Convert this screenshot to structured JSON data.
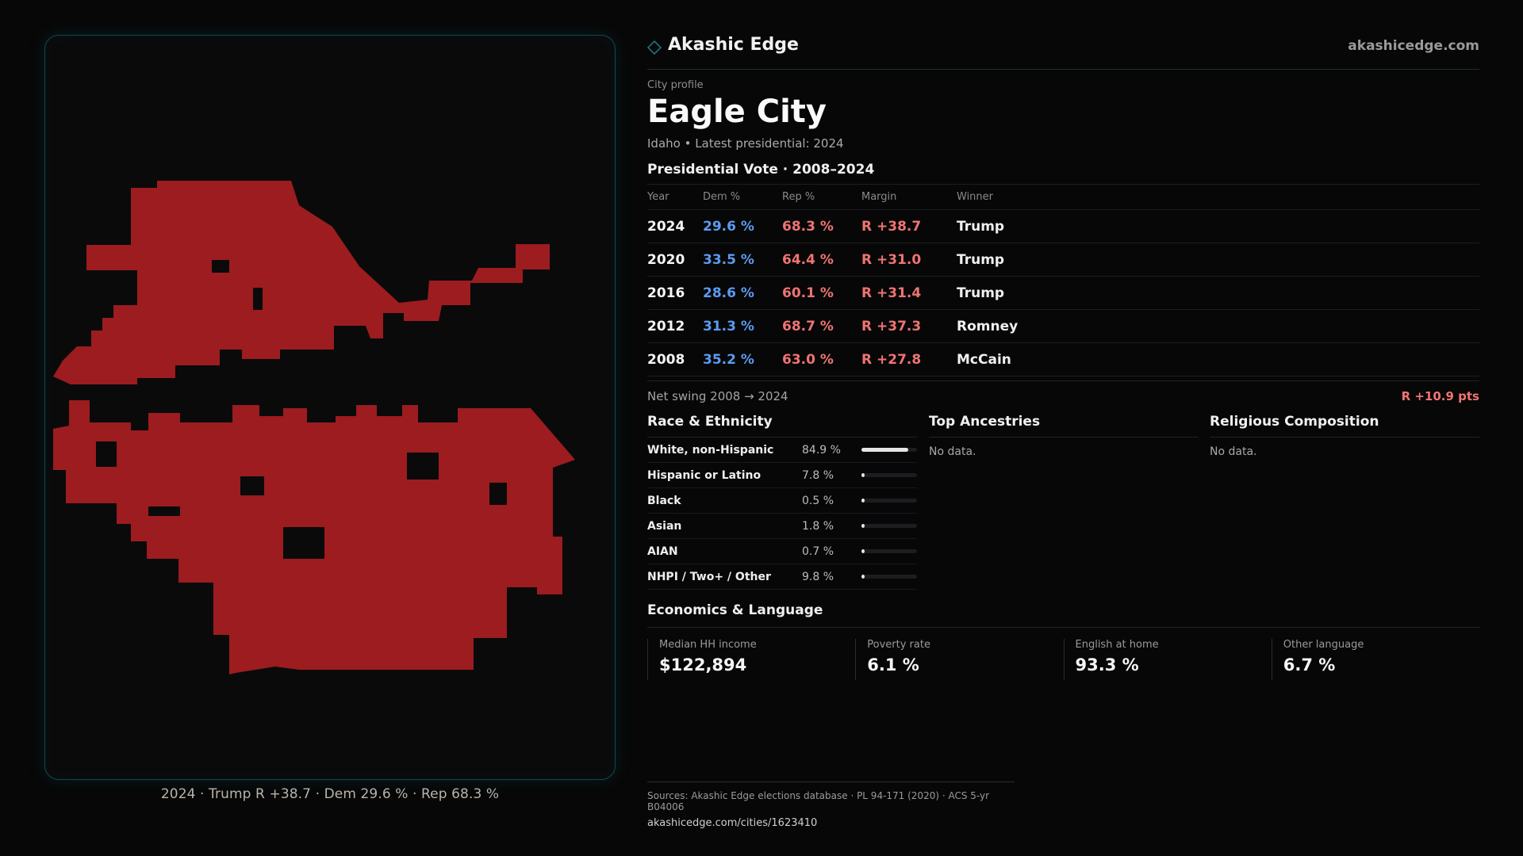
{
  "brand": {
    "name": "Akashic Edge",
    "site": "akashicedge.com",
    "accent": "#1f6f80"
  },
  "profile": {
    "eyebrow": "City profile",
    "city": "Eagle City",
    "subtitle": "Idaho • Latest presidential: 2024"
  },
  "map": {
    "fill": "#9c1c1f",
    "caption": "2024 · Trump R +38.7 · Dem 29.6 % · Rep 68.3 %"
  },
  "vote": {
    "title": "Presidential Vote · 2008–2024",
    "headers": {
      "year": "Year",
      "dem": "Dem %",
      "rep": "Rep %",
      "margin": "Margin",
      "winner": "Winner"
    },
    "rows": [
      {
        "year": "2024",
        "dem": "29.6 %",
        "rep": "68.3 %",
        "margin": "R +38.7",
        "winner": "Trump"
      },
      {
        "year": "2020",
        "dem": "33.5 %",
        "rep": "64.4 %",
        "margin": "R +31.0",
        "winner": "Trump"
      },
      {
        "year": "2016",
        "dem": "28.6 %",
        "rep": "60.1 %",
        "margin": "R +31.4",
        "winner": "Trump"
      },
      {
        "year": "2012",
        "dem": "31.3 %",
        "rep": "68.7 %",
        "margin": "R +37.3",
        "winner": "Romney"
      },
      {
        "year": "2008",
        "dem": "35.2 %",
        "rep": "63.0 %",
        "margin": "R +27.8",
        "winner": "McCain"
      }
    ],
    "swing_label": "Net swing 2008 → 2024",
    "swing_value": "R +10.9 pts"
  },
  "race": {
    "title": "Race & Ethnicity",
    "rows": [
      {
        "label": "White, non-Hispanic",
        "value": "84.9 %",
        "share": 0.849
      },
      {
        "label": "Hispanic or Latino",
        "value": "7.8 %",
        "share": 0.078
      },
      {
        "label": "Black",
        "value": "0.5 %",
        "share": 0.005
      },
      {
        "label": "Asian",
        "value": "1.8 %",
        "share": 0.018
      },
      {
        "label": "AIAN",
        "value": "0.7 %",
        "share": 0.007
      },
      {
        "label": "NHPI / Two+ / Other",
        "value": "9.8 %",
        "share": 0.098
      }
    ]
  },
  "ancestries": {
    "title": "Top Ancestries",
    "empty": "No data."
  },
  "religion": {
    "title": "Religious Composition",
    "empty": "No data."
  },
  "economics": {
    "title": "Economics & Language",
    "cards": [
      {
        "label": "Median HH income",
        "value": "$122,894"
      },
      {
        "label": "Poverty rate",
        "value": "6.1 %"
      },
      {
        "label": "English at home",
        "value": "93.3 %"
      },
      {
        "label": "Other language",
        "value": "6.7 %"
      }
    ]
  },
  "sources": {
    "line": "Sources: Akashic Edge elections database · PL 94-171 (2020) · ACS 5-yr B04006",
    "url": "akashicedge.com/cities/1623410"
  }
}
